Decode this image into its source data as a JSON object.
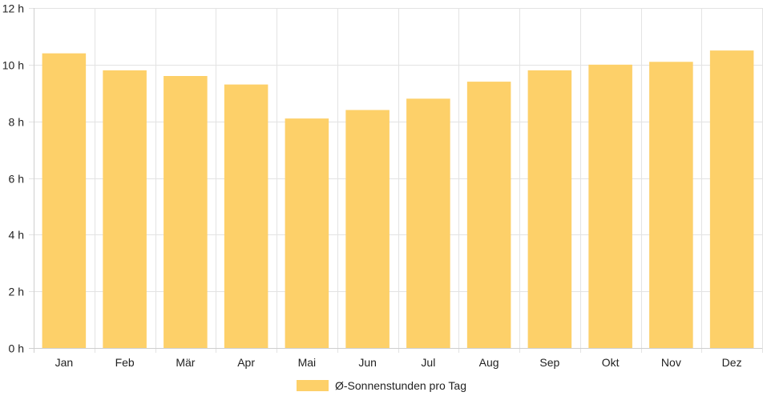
{
  "chart_data": {
    "type": "bar",
    "categories": [
      "Jan",
      "Feb",
      "Mär",
      "Apr",
      "Mai",
      "Jun",
      "Jul",
      "Aug",
      "Sep",
      "Okt",
      "Nov",
      "Dez"
    ],
    "series": [
      {
        "name": "Ø-Sonnenstunden pro Tag",
        "values": [
          10.4,
          9.8,
          9.6,
          9.3,
          8.1,
          8.4,
          8.8,
          9.4,
          9.8,
          10.0,
          10.1,
          10.5
        ]
      }
    ],
    "ylim": [
      0,
      12
    ],
    "ytick_step": 2,
    "ytick_labels": [
      "0 h",
      "2 h",
      "4 h",
      "6 h",
      "8 h",
      "10 h",
      "12 h"
    ],
    "bar_color": "#fdd069",
    "grid": true,
    "legend_position": "bottom"
  },
  "legend": {
    "label": "Ø-Sonnenstunden pro Tag"
  }
}
